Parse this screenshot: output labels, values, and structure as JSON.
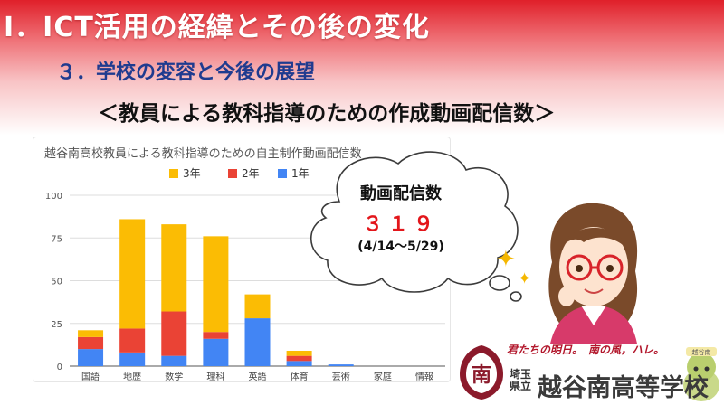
{
  "title": "Ⅰ．ICT活用の経緯とその後の変化",
  "subtitle": "３．学校の変容と今後の展望",
  "heading": "＜教員による教科指導のための作成動画配信数＞",
  "bubble": {
    "title": "動画配信数",
    "count": "３１９",
    "range": "(4/14～5/29)"
  },
  "school": {
    "slogan": "君たちの明日。",
    "slogan2": "南の風，ハレ。",
    "prefecture": "埼玉県立",
    "name": "越谷南高等学校",
    "emblem_char": "南",
    "mascot_badge": "越谷南"
  },
  "colors": {
    "year3": "#fbbc04",
    "year2": "#ea4335",
    "year1": "#4285f4"
  },
  "chart_data": {
    "type": "bar",
    "stacked": true,
    "title": "越谷南高校教員による教科指導のための自主制作動画配信数",
    "categories": [
      "国語",
      "地歴",
      "数学",
      "理科",
      "英語",
      "体育",
      "芸術",
      "家庭",
      "情報"
    ],
    "series": [
      {
        "name": "1年",
        "color": "#4285f4",
        "values": [
          10,
          8,
          6,
          16,
          28,
          3,
          1,
          0,
          0
        ]
      },
      {
        "name": "2年",
        "color": "#ea4335",
        "values": [
          7,
          14,
          26,
          4,
          0,
          3,
          0,
          0,
          0
        ]
      },
      {
        "name": "3年",
        "color": "#fbbc04",
        "values": [
          4,
          64,
          51,
          56,
          14,
          3,
          0,
          0,
          0
        ]
      }
    ],
    "legend_order": [
      "3年",
      "2年",
      "1年"
    ],
    "legend_position": "top",
    "ylim": [
      0,
      100
    ],
    "yticks": [
      0,
      25,
      50,
      75,
      100
    ],
    "grid": true
  }
}
